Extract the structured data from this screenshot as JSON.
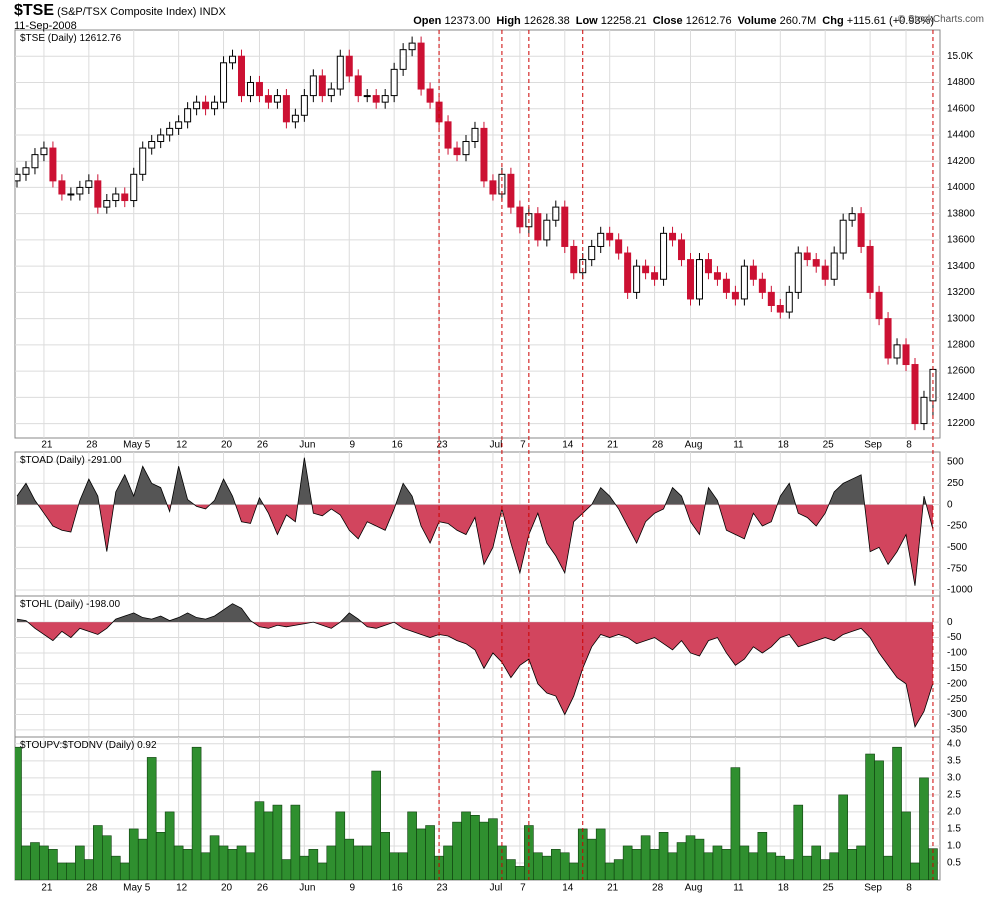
{
  "header": {
    "symbol": "$TSE",
    "name": "(S&P/TSX Composite Index)",
    "exchange": "INDX",
    "date": "11-Sep-2008",
    "stats": [
      {
        "label": "Open",
        "value": "12373.00"
      },
      {
        "label": "High",
        "value": "12628.38"
      },
      {
        "label": "Low",
        "value": "12258.21"
      },
      {
        "label": "Close",
        "value": "12612.76"
      },
      {
        "label": "Volume",
        "value": "260.7M"
      },
      {
        "label": "Chg",
        "value": "+115.61 (+0.93%)"
      }
    ],
    "credit": "© StockCharts.com"
  },
  "chart_data": [
    {
      "type": "candlestick",
      "label": "$TSE (Daily)",
      "last": "12612.76",
      "categories": [
        null,
        null,
        null,
        "21",
        null,
        null,
        null,
        null,
        "28",
        null,
        null,
        null,
        null,
        "May 5",
        null,
        null,
        null,
        null,
        "12",
        null,
        null,
        null,
        null,
        "20",
        null,
        null,
        null,
        "26",
        null,
        null,
        null,
        null,
        "Jun",
        null,
        null,
        null,
        null,
        "9",
        null,
        null,
        null,
        null,
        "16",
        null,
        null,
        null,
        null,
        "23",
        null,
        null,
        null,
        null,
        null,
        "Jul",
        null,
        null,
        "7",
        null,
        null,
        null,
        null,
        "14",
        null,
        null,
        null,
        null,
        "21",
        null,
        null,
        null,
        null,
        "28",
        null,
        null,
        null,
        "Aug",
        null,
        null,
        null,
        null,
        "11",
        null,
        null,
        null,
        null,
        "18",
        null,
        null,
        null,
        null,
        "25",
        null,
        null,
        null,
        null,
        "Sep",
        null,
        null,
        null,
        "8",
        null,
        null,
        null
      ],
      "open": [
        14050,
        14100,
        14150,
        14250,
        14300,
        14050,
        13950,
        13950,
        14000,
        14050,
        13850,
        13900,
        13950,
        13900,
        14100,
        14300,
        14350,
        14400,
        14450,
        14500,
        14600,
        14650,
        14600,
        14650,
        14950,
        15000,
        14700,
        14800,
        14700,
        14650,
        14700,
        14500,
        14550,
        14700,
        14850,
        14700,
        14750,
        15000,
        14850,
        14700,
        14700,
        14650,
        14700,
        14900,
        15050,
        15100,
        14750,
        14650,
        14500,
        14300,
        14250,
        14350,
        14450,
        14050,
        13950,
        14100,
        13850,
        13700,
        13800,
        13600,
        13750,
        13850,
        13550,
        13350,
        13450,
        13550,
        13650,
        13600,
        13500,
        13200,
        13400,
        13350,
        13300,
        13650,
        13600,
        13450,
        13150,
        13450,
        13350,
        13300,
        13200,
        13150,
        13400,
        13300,
        13200,
        13100,
        13050,
        13200,
        13500,
        13450,
        13400,
        13300,
        13500,
        13750,
        13800,
        13550,
        13200,
        13000,
        12700,
        12800,
        12650,
        12200,
        12373
      ],
      "high": [
        14150,
        14200,
        14300,
        14350,
        14350,
        14100,
        14000,
        14050,
        14100,
        14100,
        13950,
        14000,
        14000,
        14150,
        14350,
        14400,
        14450,
        14500,
        14550,
        14650,
        14700,
        14700,
        14700,
        15000,
        15050,
        15050,
        14850,
        14850,
        14750,
        14750,
        14750,
        14600,
        14750,
        14900,
        14900,
        14800,
        15050,
        15050,
        14900,
        14750,
        14750,
        14750,
        14950,
        15100,
        15150,
        15150,
        14800,
        14700,
        14550,
        14350,
        14400,
        14500,
        14500,
        14100,
        14150,
        14150,
        13900,
        13850,
        13850,
        13800,
        13900,
        13900,
        13600,
        13500,
        13600,
        13700,
        13700,
        13650,
        13550,
        13450,
        13450,
        13400,
        13700,
        13700,
        13650,
        13500,
        13500,
        13500,
        13400,
        13350,
        13250,
        13450,
        13450,
        13350,
        13250,
        13150,
        13250,
        13550,
        13550,
        13500,
        13450,
        13550,
        13800,
        13850,
        13850,
        13600,
        13250,
        13050,
        12850,
        12850,
        12700,
        12450,
        12628.38
      ],
      "low": [
        14000,
        14050,
        14100,
        14200,
        14000,
        13900,
        13900,
        13900,
        13950,
        13800,
        13800,
        13850,
        13850,
        13850,
        14050,
        14250,
        14300,
        14350,
        14400,
        14450,
        14550,
        14550,
        14550,
        14600,
        14900,
        14650,
        14650,
        14650,
        14600,
        14600,
        14450,
        14450,
        14500,
        14650,
        14650,
        14650,
        14700,
        14800,
        14650,
        14650,
        14600,
        14600,
        14650,
        14850,
        15000,
        14700,
        14600,
        14450,
        14250,
        14200,
        14200,
        14300,
        14000,
        13900,
        13900,
        13800,
        13650,
        13650,
        13550,
        13550,
        13700,
        13500,
        13300,
        13300,
        13400,
        13500,
        13550,
        13450,
        13150,
        13150,
        13300,
        13250,
        13250,
        13550,
        13400,
        13100,
        13100,
        13300,
        13250,
        13150,
        13100,
        13100,
        13250,
        13150,
        13050,
        13000,
        13000,
        13150,
        13400,
        13350,
        13250,
        13250,
        13450,
        13700,
        13500,
        13150,
        12950,
        12650,
        12650,
        12600,
        12150,
        12150,
        12258.21
      ],
      "close": [
        14100,
        14150,
        14250,
        14300,
        14050,
        13950,
        13950,
        14000,
        14050,
        13850,
        13900,
        13950,
        13900,
        14100,
        14300,
        14350,
        14400,
        14450,
        14500,
        14600,
        14650,
        14600,
        14650,
        14950,
        15000,
        14700,
        14800,
        14700,
        14650,
        14700,
        14500,
        14550,
        14700,
        14850,
        14700,
        14750,
        15000,
        14850,
        14700,
        14700,
        14650,
        14700,
        14900,
        15050,
        15100,
        14750,
        14650,
        14500,
        14300,
        14250,
        14350,
        14450,
        14050,
        13950,
        14100,
        13850,
        13700,
        13800,
        13600,
        13750,
        13850,
        13550,
        13350,
        13450,
        13550,
        13650,
        13600,
        13500,
        13200,
        13400,
        13350,
        13300,
        13650,
        13600,
        13450,
        13150,
        13450,
        13350,
        13300,
        13200,
        13150,
        13400,
        13300,
        13200,
        13100,
        13050,
        13200,
        13500,
        13450,
        13400,
        13300,
        13500,
        13750,
        13800,
        13550,
        13200,
        13000,
        12700,
        12800,
        12650,
        12200,
        12400,
        12612.76
      ],
      "ylim": [
        12090,
        15200
      ],
      "yticks": [
        12200,
        12400,
        12600,
        12800,
        13000,
        13200,
        13400,
        13600,
        13800,
        14000,
        14200,
        14400,
        14600,
        14800,
        {
          "value": 15000,
          "label": "15.0K"
        }
      ],
      "grid": true,
      "up_color": "#000000",
      "down_color": "#cc1133",
      "annotation_color": "#cc0000",
      "annotation_lines": [
        47,
        54,
        57,
        63,
        102
      ]
    },
    {
      "type": "area",
      "label": "$TOAD (Daily)",
      "last": "-291.00",
      "values": [
        100,
        250,
        50,
        -100,
        -250,
        -300,
        -320,
        50,
        300,
        100,
        -550,
        150,
        350,
        100,
        450,
        250,
        200,
        -80,
        450,
        60,
        -20,
        -50,
        50,
        300,
        100,
        -200,
        -220,
        80,
        -100,
        -350,
        -120,
        -200,
        550,
        -100,
        -130,
        -50,
        -120,
        -300,
        -400,
        -200,
        -250,
        -300,
        -50,
        250,
        100,
        -250,
        -450,
        -200,
        -220,
        -300,
        -350,
        -150,
        -700,
        -500,
        -50,
        -450,
        -800,
        -350,
        -100,
        -450,
        -600,
        -800,
        -200,
        -100,
        0,
        200,
        100,
        -50,
        -250,
        -450,
        -200,
        -100,
        -50,
        200,
        100,
        -200,
        -350,
        200,
        50,
        -300,
        -350,
        -400,
        -100,
        -250,
        -200,
        100,
        250,
        -100,
        -150,
        -250,
        -100,
        150,
        250,
        300,
        350,
        -550,
        -500,
        -700,
        -550,
        -350,
        -950,
        100,
        -291
      ],
      "ylim": [
        -1070,
        617
      ],
      "yticks": [
        -1000,
        -750,
        -500,
        -250,
        0,
        250,
        500
      ],
      "grid": true,
      "pos_color": "#555555",
      "neg_color": "#d2455e"
    },
    {
      "type": "area",
      "label": "$TOHL (Daily)",
      "last": "-198.00",
      "values": [
        10,
        5,
        -20,
        -40,
        -60,
        -30,
        -50,
        -20,
        -30,
        -40,
        -20,
        10,
        20,
        30,
        15,
        10,
        20,
        5,
        15,
        30,
        15,
        10,
        20,
        40,
        60,
        45,
        5,
        -15,
        -20,
        -10,
        -15,
        -10,
        -5,
        0,
        -10,
        -20,
        0,
        30,
        10,
        -15,
        -20,
        -10,
        0,
        -20,
        -30,
        -40,
        -50,
        -40,
        -45,
        -60,
        -70,
        -90,
        -150,
        -100,
        -130,
        -180,
        -140,
        -120,
        -200,
        -230,
        -240,
        -300,
        -240,
        -150,
        -80,
        -40,
        -50,
        -40,
        -50,
        -70,
        -60,
        -50,
        -70,
        -90,
        -60,
        -100,
        -110,
        -60,
        -50,
        -100,
        -140,
        -120,
        -80,
        -100,
        -80,
        -50,
        -40,
        -80,
        -70,
        -60,
        -50,
        -60,
        -40,
        -30,
        -20,
        -50,
        -100,
        -140,
        -180,
        -200,
        -340,
        -290,
        -198
      ],
      "ylim": [
        -373,
        85
      ],
      "yticks": [
        -350,
        -300,
        -250,
        -200,
        -150,
        -100,
        -50,
        0
      ],
      "grid": true,
      "pos_color": "#555555",
      "neg_color": "#d2455e"
    },
    {
      "type": "bar",
      "label": "$TOUPV:$TODNV (Daily)",
      "last": "0.92",
      "values": [
        3.9,
        1.0,
        1.1,
        1.0,
        0.9,
        0.5,
        0.5,
        1.0,
        0.6,
        1.6,
        1.3,
        0.7,
        0.5,
        1.5,
        1.2,
        3.6,
        1.4,
        2.0,
        1.0,
        0.9,
        3.9,
        0.8,
        1.3,
        1.0,
        0.9,
        1.0,
        0.8,
        2.3,
        2.0,
        2.2,
        0.6,
        2.2,
        0.7,
        0.9,
        0.5,
        1.0,
        2.0,
        1.2,
        1.0,
        1.0,
        3.2,
        1.4,
        0.8,
        0.8,
        2.0,
        1.5,
        1.6,
        0.7,
        1.0,
        1.7,
        2.0,
        1.9,
        1.7,
        1.8,
        1.0,
        0.6,
        0.4,
        1.6,
        0.8,
        0.7,
        0.9,
        0.8,
        0.5,
        1.5,
        1.2,
        1.5,
        0.5,
        0.6,
        1.0,
        0.9,
        1.3,
        0.9,
        1.4,
        0.8,
        1.1,
        1.3,
        1.2,
        0.8,
        1.0,
        0.9,
        3.3,
        1.0,
        0.8,
        1.4,
        0.8,
        0.7,
        0.6,
        2.2,
        0.7,
        1.0,
        0.6,
        0.8,
        2.5,
        0.9,
        1.0,
        3.7,
        3.5,
        0.7,
        3.9,
        2.0,
        0.5,
        3.0,
        0.92
      ],
      "ylim": [
        0,
        4.2
      ],
      "yticks": [
        0.5,
        {
          "value": 1,
          "label": "1.0"
        },
        1.5,
        {
          "value": 2,
          "label": "2.0"
        },
        2.5,
        {
          "value": 3,
          "label": "3.0"
        },
        3.5,
        {
          "value": 4,
          "label": "4.0"
        }
      ],
      "grid": true,
      "color": "#2f8f2f"
    }
  ]
}
